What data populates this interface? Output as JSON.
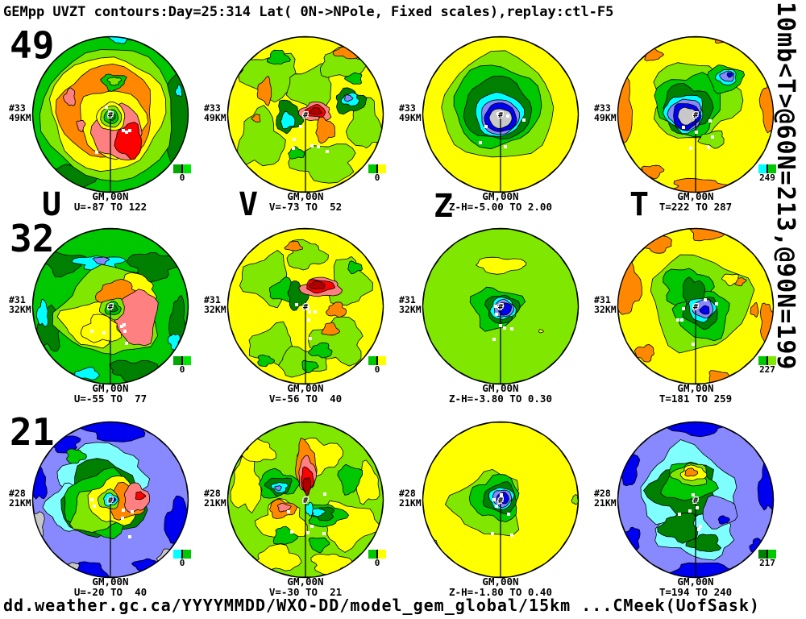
{
  "title": "GEMpp UVZT contours:Day=25:314 Lat( 0N->NPole, Fixed scales),replay:ctl-F5",
  "right_vertical_text": "10mb<T>@60N=213,@90N=199",
  "footer": "dd.weather.gc.ca/YYYYMMDD/WXO-DD/model_gem_global/15km ...CMeek(UofSask)",
  "column_labels": [
    "U",
    "V",
    "Z",
    "T"
  ],
  "palette": {
    "green": "#00C800",
    "dgreen": "#008000",
    "lgreen": "#80E800",
    "yellow": "#FFFF00",
    "orange": "#FF8800",
    "salmon": "#FF8080",
    "red": "#FF0000",
    "dred": "#B00000",
    "cyan": "#00FFFF",
    "cyan2": "#80FFFF",
    "peri": "#8888FF",
    "blue": "#0000F0",
    "gray": "#C8C8C8",
    "outline": "#000000",
    "marker": "#FFFFFF"
  },
  "chart_data": {
    "type": "heatmap",
    "title": "GEMpp UVZT contours:Day=25:314 Lat( 0N->NPole, Fixed scales),replay:ctl-F5",
    "note": "3 rows (altitudes) x 4 columns (variables U,V,Z,T) of polar-stereographic contour maps, 0N to North Pole, fixed scales",
    "rows": [
      {
        "label": "49",
        "level": "#33",
        "height": "49KM",
        "panels": [
          {
            "variable": "U",
            "caption": "GM,00N",
            "range": "U=-87 TO 122",
            "min": -87,
            "max": 122,
            "legend": {
              "label": "0",
              "colors": [
                "#00A800",
                "#00E800"
              ]
            }
          },
          {
            "variable": "V",
            "caption": "GM,00N",
            "range": "V=-73 TO  52",
            "min": -73,
            "max": 52,
            "legend": {
              "label": "0",
              "colors": [
                "#00C800",
                "#FFFF00"
              ]
            }
          },
          {
            "variable": "Z",
            "caption": "GM,00N",
            "range": "Z-H=-5.00 TO 2.00",
            "min": -5.0,
            "max": 2.0,
            "legend": null
          },
          {
            "variable": "T",
            "caption": "GM,00N",
            "range": "T=222 TO 287",
            "min": 222,
            "max": 287,
            "legend": {
              "label": "249",
              "colors": [
                "#00FFFF",
                "#00C800"
              ]
            }
          }
        ]
      },
      {
        "label": "32",
        "level": "#31",
        "height": "32KM",
        "panels": [
          {
            "variable": "U",
            "caption": "GM,00N",
            "range": "U=-55 TO  77",
            "min": -55,
            "max": 77,
            "legend": {
              "label": "0",
              "colors": [
                "#00A800",
                "#00E800"
              ]
            }
          },
          {
            "variable": "V",
            "caption": "GM,00N",
            "range": "V=-56 TO  40",
            "min": -56,
            "max": 40,
            "legend": {
              "label": "0",
              "colors": [
                "#00C800",
                "#FFFF00"
              ]
            }
          },
          {
            "variable": "Z",
            "caption": "GM,00N",
            "range": "Z-H=-3.80 TO 0.30",
            "min": -3.8,
            "max": 0.3,
            "legend": null
          },
          {
            "variable": "T",
            "caption": "GM,00N",
            "range": "T=181 TO 259",
            "min": 181,
            "max": 259,
            "legend": {
              "label": "227",
              "colors": [
                "#00C800",
                "#80E800"
              ]
            }
          }
        ]
      },
      {
        "label": "21",
        "level": "#28",
        "height": "21KM",
        "panels": [
          {
            "variable": "U",
            "caption": "GM,00N",
            "range": "U=-20 TO  40",
            "min": -20,
            "max": 40,
            "legend": {
              "label": "0",
              "colors": [
                "#00FFFF",
                "#00C800"
              ]
            }
          },
          {
            "variable": "V",
            "caption": "GM,00N",
            "range": "V=-30 TO  21",
            "min": -30,
            "max": 21,
            "legend": {
              "label": "0",
              "colors": [
                "#00C800",
                "#FFFF00"
              ]
            }
          },
          {
            "variable": "Z",
            "caption": "GM,00N",
            "range": "Z-H=-1.80 TO 0.40",
            "min": -1.8,
            "max": 0.4,
            "legend": null
          },
          {
            "variable": "T",
            "caption": "GM,00N",
            "range": "T=194 TO 240",
            "min": 194,
            "max": 240,
            "legend": {
              "label": "217",
              "colors": [
                "#008000",
                "#00C800"
              ]
            }
          }
        ]
      }
    ]
  }
}
